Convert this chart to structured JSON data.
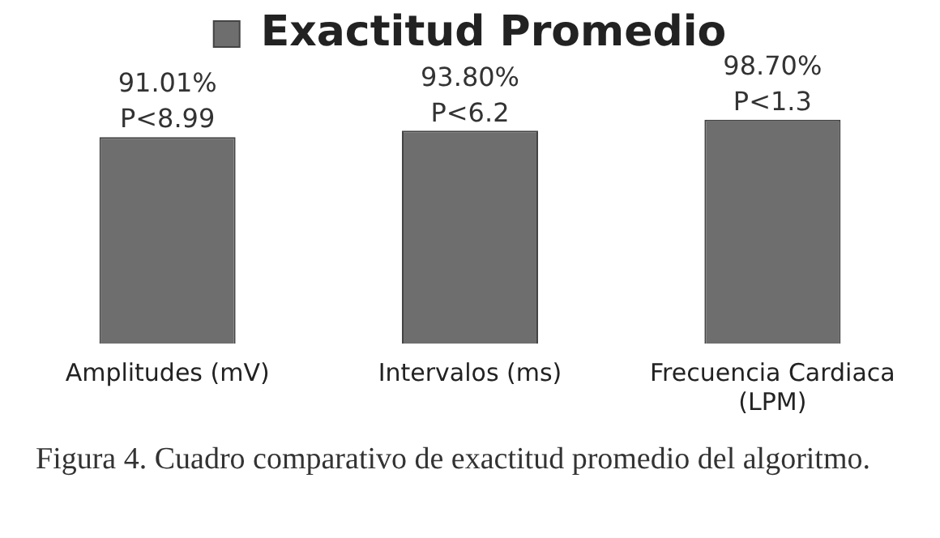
{
  "chart_data": {
    "type": "bar",
    "categories": [
      "Amplitudes (mV)",
      "Intervalos (ms)",
      "Frecuencia Cardiaca (LPM)"
    ],
    "series": [
      {
        "name": "Exactitud Promedio",
        "color": "#6e6e6e",
        "values": [
          91.01,
          93.8,
          98.7
        ],
        "value_labels": [
          "91.01%",
          "93.80%",
          "98.70%"
        ]
      }
    ],
    "tick_labels": "x",
    "grid": false,
    "legend": "top",
    "annotations": [
      {
        "text": "P<8.99",
        "x": "Amplitudes (mV)",
        "y": 91.01
      },
      {
        "text": "P<6.2",
        "x": "Intervalos (ms)",
        "y": 93.8
      },
      {
        "text": "P<1.3",
        "x": "Frecuencia Cardiaca (LPM)",
        "y": 98.7
      },
      "Figura 4. Cuadro comparativo de exactitud promedio del algoritmo."
    ]
  }
}
